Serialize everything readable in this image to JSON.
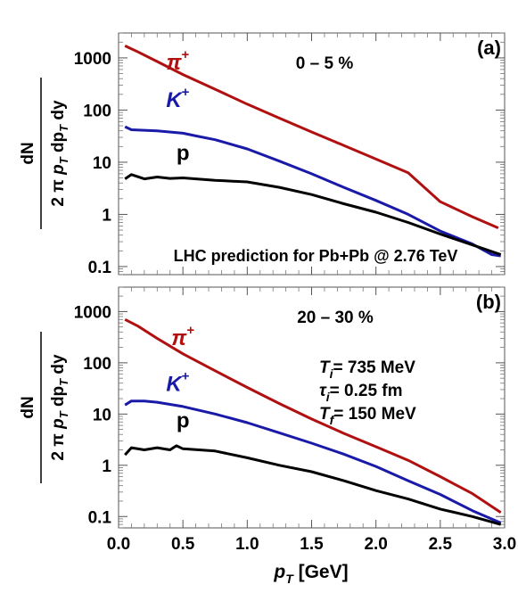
{
  "xlabel": {
    "p": "p",
    "sub": "T",
    "unit": "[GeV]"
  },
  "ylabel": {
    "top": "dN",
    "b1": "2",
    "b2": "π",
    "b3": "p",
    "b4": "T",
    "b5": "dp",
    "b6": "T",
    "b7": "dy"
  },
  "colors": {
    "pion": "#b01010",
    "kaon": "#1a1aa8",
    "proton": "#000000"
  },
  "chart_data": [
    {
      "type": "line",
      "panel_label": "(a)",
      "centrality": "0 – 5 %",
      "annotation": "LHC prediction for Pb+Pb @ 2.76 TeV",
      "xlim": [
        0,
        3
      ],
      "ylim": [
        0.07,
        3000
      ],
      "yscale": "log",
      "x_ticks": [
        0.0,
        0.5,
        1.0,
        1.5,
        2.0,
        2.5,
        3.0
      ],
      "y_ticks": [
        {
          "v": 0.1,
          "label": "0.1"
        },
        {
          "v": 1,
          "label": "1"
        },
        {
          "v": 10,
          "label": "10"
        },
        {
          "v": 100,
          "label": "100"
        },
        {
          "v": 1000,
          "label": "1000"
        }
      ],
      "series": [
        {
          "name": "π+",
          "base": "π",
          "sup": "+",
          "italic": true,
          "color_key": "pion",
          "label_x": 0.46,
          "label_y": 600,
          "x": [
            0.05,
            0.15,
            0.3,
            0.5,
            0.75,
            1.0,
            1.25,
            1.5,
            1.75,
            2.0,
            2.25,
            2.5,
            2.75,
            2.95
          ],
          "y": [
            1700,
            1300,
            850,
            480,
            250,
            130,
            70,
            38,
            21,
            11.5,
            6.3,
            1.75,
            0.9,
            0.55
          ]
        },
        {
          "name": "K+",
          "base": "K",
          "sup": "+",
          "italic": true,
          "color_key": "kaon",
          "label_x": 0.46,
          "label_y": 115,
          "x": [
            0.05,
            0.1,
            0.3,
            0.5,
            0.6,
            0.75,
            1.0,
            1.25,
            1.5,
            1.75,
            2.0,
            2.25,
            2.5,
            2.75,
            2.9,
            2.97
          ],
          "y": [
            48,
            42,
            40,
            36,
            32,
            27,
            18,
            10.5,
            6,
            3.3,
            1.85,
            1.0,
            0.48,
            0.27,
            0.17,
            0.16
          ]
        },
        {
          "name": "p",
          "base": "p",
          "sup": "",
          "italic": false,
          "color_key": "proton",
          "label_x": 0.5,
          "label_y": 11,
          "x": [
            0.05,
            0.1,
            0.2,
            0.3,
            0.4,
            0.5,
            0.75,
            1.0,
            1.25,
            1.5,
            1.75,
            2.0,
            2.25,
            2.5,
            2.75,
            2.97
          ],
          "y": [
            4.8,
            5.8,
            4.8,
            5.2,
            4.9,
            5.0,
            4.5,
            4.2,
            3.3,
            2.4,
            1.6,
            1.1,
            0.7,
            0.42,
            0.26,
            0.17
          ]
        }
      ]
    },
    {
      "type": "line",
      "panel_label": "(b)",
      "centrality": "20 – 30 %",
      "params": [
        {
          "sym": "T",
          "sub": "i",
          "val": "= 735 MeV"
        },
        {
          "sym": "τ",
          "sub": "i",
          "val": "= 0.25 fm"
        },
        {
          "sym": "T",
          "sub": "f",
          "val": "= 150 MeV"
        }
      ],
      "xlim": [
        0,
        3
      ],
      "ylim": [
        0.06,
        3000
      ],
      "yscale": "log",
      "x_ticks": [
        0.0,
        0.5,
        1.0,
        1.5,
        2.0,
        2.5,
        3.0
      ],
      "y_ticks": [
        {
          "v": 0.1,
          "label": "0.1"
        },
        {
          "v": 1,
          "label": "1"
        },
        {
          "v": 10,
          "label": "10"
        },
        {
          "v": 100,
          "label": "100"
        },
        {
          "v": 1000,
          "label": "1000"
        }
      ],
      "series": [
        {
          "name": "π+",
          "base": "π",
          "sup": "+",
          "italic": true,
          "color_key": "pion",
          "label_x": 0.5,
          "label_y": 220,
          "x": [
            0.05,
            0.15,
            0.3,
            0.5,
            0.75,
            1.0,
            1.25,
            1.5,
            1.75,
            2.0,
            2.25,
            2.5,
            2.75,
            2.97
          ],
          "y": [
            700,
            520,
            300,
            150,
            70,
            33,
            16,
            8,
            4.2,
            2.3,
            1.25,
            0.6,
            0.28,
            0.12
          ]
        },
        {
          "name": "K+",
          "base": "K",
          "sup": "+",
          "italic": true,
          "color_key": "kaon",
          "label_x": 0.46,
          "label_y": 28,
          "x": [
            0.05,
            0.1,
            0.2,
            0.3,
            0.5,
            0.75,
            1.0,
            1.25,
            1.5,
            1.75,
            2.0,
            2.25,
            2.5,
            2.75,
            2.97
          ],
          "y": [
            15,
            18,
            18,
            17,
            14,
            10,
            6.8,
            4.3,
            2.7,
            1.65,
            0.95,
            0.5,
            0.27,
            0.13,
            0.075
          ]
        },
        {
          "name": "p",
          "base": "p",
          "sup": "",
          "italic": false,
          "color_key": "proton",
          "label_x": 0.5,
          "label_y": 5.5,
          "x": [
            0.05,
            0.1,
            0.2,
            0.3,
            0.4,
            0.45,
            0.5,
            0.75,
            1.0,
            1.25,
            1.5,
            1.75,
            2.0,
            2.25,
            2.5,
            2.75,
            2.97
          ],
          "y": [
            1.6,
            2.2,
            2.0,
            2.2,
            2.0,
            2.4,
            2.1,
            1.9,
            1.4,
            1.0,
            0.75,
            0.5,
            0.32,
            0.22,
            0.14,
            0.1,
            0.07
          ]
        }
      ]
    }
  ]
}
